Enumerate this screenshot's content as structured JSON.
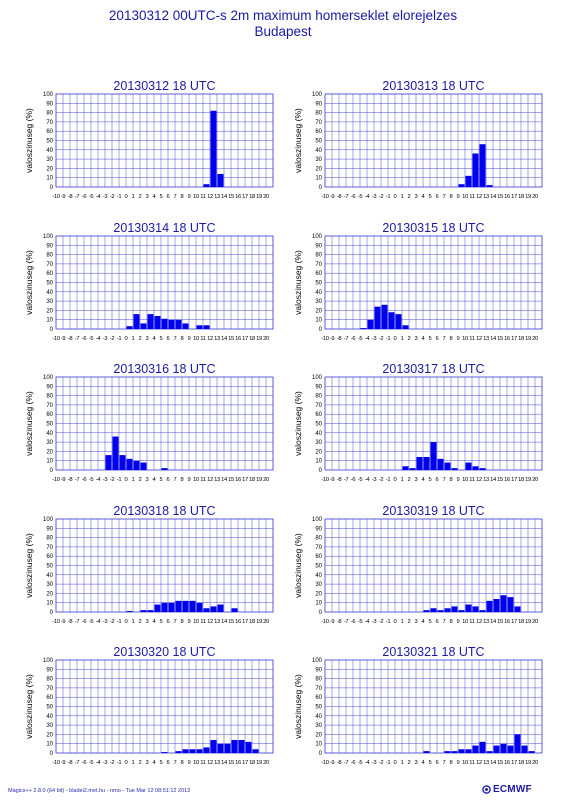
{
  "header": {
    "title_line1": "20130312 00UTC-s 2m maximum homerseklet elorejelzes",
    "title_line2": "Budapest"
  },
  "footer": {
    "software": "Magics++ 2.8.0 (64 bit) - bladei2.met.hu - nmo - Tue Mar 12 08:51:12 2013",
    "logo": "ECMWF"
  },
  "colors": {
    "bar": "#0000ee",
    "grid": "#4a4ad8",
    "text": "#1a1aa6"
  },
  "chart_data": [
    {
      "type": "bar",
      "title": "20130312 18 UTC",
      "ylabel": "valoszinuseg (%)",
      "xlabel": "",
      "ylim": [
        0,
        100
      ],
      "categories": [
        "-10",
        "-9",
        "-8",
        "-7",
        "-6",
        "-5",
        "-4",
        "-3",
        "-2",
        "-1",
        "0",
        "1",
        "2",
        "3",
        "4",
        "5",
        "6",
        "7",
        "8",
        "9",
        "10",
        "11",
        "12",
        "13",
        "14",
        "15",
        "16",
        "17",
        "18",
        "19",
        "20"
      ],
      "yticks": [
        "0",
        "10",
        "20",
        "30",
        "40",
        "50",
        "60",
        "70",
        "80",
        "90",
        "100"
      ],
      "values": [
        0,
        0,
        0,
        0,
        0,
        0,
        0,
        0,
        0,
        0,
        0,
        0,
        0,
        0,
        0,
        0,
        0,
        0,
        0,
        0,
        0,
        3,
        82,
        14,
        0,
        0,
        0,
        0,
        0,
        0,
        0
      ]
    },
    {
      "type": "bar",
      "title": "20130313 18 UTC",
      "ylabel": "valoszinuseg (%)",
      "xlabel": "",
      "ylim": [
        0,
        100
      ],
      "categories": [
        "-10",
        "-9",
        "-8",
        "-7",
        "-6",
        "-5",
        "-4",
        "-3",
        "-2",
        "-1",
        "0",
        "1",
        "2",
        "3",
        "4",
        "5",
        "6",
        "7",
        "8",
        "9",
        "10",
        "11",
        "12",
        "13",
        "14",
        "15",
        "16",
        "17",
        "18",
        "19",
        "20"
      ],
      "yticks": [
        "0",
        "10",
        "20",
        "30",
        "40",
        "50",
        "60",
        "70",
        "80",
        "90",
        "100"
      ],
      "values": [
        0,
        0,
        0,
        0,
        0,
        0,
        0,
        0,
        0,
        0,
        0,
        0,
        0,
        0,
        0,
        0,
        0,
        0,
        0,
        3,
        12,
        36,
        46,
        2,
        0,
        0,
        0,
        0,
        0,
        0,
        0
      ]
    },
    {
      "type": "bar",
      "title": "20130314 18 UTC",
      "ylabel": "valoszinuseg (%)",
      "xlabel": "",
      "ylim": [
        0,
        100
      ],
      "categories": [
        "-10",
        "-9",
        "-8",
        "-7",
        "-6",
        "-5",
        "-4",
        "-3",
        "-2",
        "-1",
        "0",
        "1",
        "2",
        "3",
        "4",
        "5",
        "6",
        "7",
        "8",
        "9",
        "10",
        "11",
        "12",
        "13",
        "14",
        "15",
        "16",
        "17",
        "18",
        "19",
        "20"
      ],
      "yticks": [
        "0",
        "10",
        "20",
        "30",
        "40",
        "50",
        "60",
        "70",
        "80",
        "90",
        "100"
      ],
      "values": [
        0,
        0,
        0,
        0,
        0,
        0,
        0,
        0,
        0,
        0,
        3,
        16,
        6,
        16,
        14,
        11,
        10,
        10,
        6,
        0,
        4,
        4,
        0,
        0,
        0,
        0,
        0,
        0,
        0,
        0,
        0
      ]
    },
    {
      "type": "bar",
      "title": "20130315 18 UTC",
      "ylabel": "valoszinuseg (%)",
      "xlabel": "",
      "ylim": [
        0,
        100
      ],
      "categories": [
        "-10",
        "-9",
        "-8",
        "-7",
        "-6",
        "-5",
        "-4",
        "-3",
        "-2",
        "-1",
        "0",
        "1",
        "2",
        "3",
        "4",
        "5",
        "6",
        "7",
        "8",
        "9",
        "10",
        "11",
        "12",
        "13",
        "14",
        "15",
        "16",
        "17",
        "18",
        "19",
        "20"
      ],
      "yticks": [
        "0",
        "10",
        "20",
        "30",
        "40",
        "50",
        "60",
        "70",
        "80",
        "90",
        "100"
      ],
      "values": [
        0,
        0,
        0,
        0,
        0,
        1,
        10,
        24,
        26,
        18,
        16,
        4,
        0,
        0,
        0,
        0,
        0,
        0,
        0,
        0,
        0,
        0,
        0,
        0,
        0,
        0,
        0,
        0,
        0,
        0,
        0
      ]
    },
    {
      "type": "bar",
      "title": "20130316 18 UTC",
      "ylabel": "valoszinuseg (%)",
      "xlabel": "",
      "ylim": [
        0,
        100
      ],
      "categories": [
        "-10",
        "-9",
        "-8",
        "-7",
        "-6",
        "-5",
        "-4",
        "-3",
        "-2",
        "-1",
        "0",
        "1",
        "2",
        "3",
        "4",
        "5",
        "6",
        "7",
        "8",
        "9",
        "10",
        "11",
        "12",
        "13",
        "14",
        "15",
        "16",
        "17",
        "18",
        "19",
        "20"
      ],
      "yticks": [
        "0",
        "10",
        "20",
        "30",
        "40",
        "50",
        "60",
        "70",
        "80",
        "90",
        "100"
      ],
      "values": [
        0,
        0,
        0,
        0,
        0,
        0,
        0,
        16,
        36,
        16,
        12,
        10,
        8,
        0,
        0,
        2,
        0,
        0,
        0,
        0,
        0,
        0,
        0,
        0,
        0,
        0,
        0,
        0,
        0,
        0,
        0
      ]
    },
    {
      "type": "bar",
      "title": "20130317 18 UTC",
      "ylabel": "valoszinuseg (%)",
      "xlabel": "",
      "ylim": [
        0,
        100
      ],
      "categories": [
        "-10",
        "-9",
        "-8",
        "-7",
        "-6",
        "-5",
        "-4",
        "-3",
        "-2",
        "-1",
        "0",
        "1",
        "2",
        "3",
        "4",
        "5",
        "6",
        "7",
        "8",
        "9",
        "10",
        "11",
        "12",
        "13",
        "14",
        "15",
        "16",
        "17",
        "18",
        "19",
        "20"
      ],
      "yticks": [
        "0",
        "10",
        "20",
        "30",
        "40",
        "50",
        "60",
        "70",
        "80",
        "90",
        "100"
      ],
      "values": [
        0,
        0,
        0,
        0,
        0,
        0,
        0,
        0,
        0,
        0,
        0,
        4,
        2,
        14,
        14,
        30,
        12,
        8,
        2,
        0,
        8,
        4,
        2,
        0,
        0,
        0,
        0,
        0,
        0,
        0,
        0
      ]
    },
    {
      "type": "bar",
      "title": "20130318 18 UTC",
      "ylabel": "valoszinuseg (%)",
      "xlabel": "",
      "ylim": [
        0,
        100
      ],
      "categories": [
        "-10",
        "-9",
        "-8",
        "-7",
        "-6",
        "-5",
        "-4",
        "-3",
        "-2",
        "-1",
        "0",
        "1",
        "2",
        "3",
        "4",
        "5",
        "6",
        "7",
        "8",
        "9",
        "10",
        "11",
        "12",
        "13",
        "14",
        "15",
        "16",
        "17",
        "18",
        "19",
        "20"
      ],
      "yticks": [
        "0",
        "10",
        "20",
        "30",
        "40",
        "50",
        "60",
        "70",
        "80",
        "90",
        "100"
      ],
      "values": [
        0,
        0,
        0,
        0,
        0,
        0,
        0,
        0,
        0,
        0,
        1,
        0,
        2,
        2,
        8,
        10,
        10,
        12,
        12,
        12,
        10,
        4,
        6,
        8,
        0,
        4,
        0,
        0,
        0,
        0,
        0
      ]
    },
    {
      "type": "bar",
      "title": "20130319 18 UTC",
      "ylabel": "valoszinuseg (%)",
      "xlabel": "",
      "ylim": [
        0,
        100
      ],
      "categories": [
        "-10",
        "-9",
        "-8",
        "-7",
        "-6",
        "-5",
        "-4",
        "-3",
        "-2",
        "-1",
        "0",
        "1",
        "2",
        "3",
        "4",
        "5",
        "6",
        "7",
        "8",
        "9",
        "10",
        "11",
        "12",
        "13",
        "14",
        "15",
        "16",
        "17",
        "18",
        "19",
        "20"
      ],
      "yticks": [
        "0",
        "10",
        "20",
        "30",
        "40",
        "50",
        "60",
        "70",
        "80",
        "90",
        "100"
      ],
      "values": [
        0,
        0,
        0,
        0,
        0,
        0,
        0,
        0,
        0,
        0,
        0,
        0,
        0,
        0,
        2,
        4,
        2,
        4,
        6,
        2,
        8,
        6,
        2,
        12,
        14,
        18,
        16,
        6,
        0,
        0,
        0
      ]
    },
    {
      "type": "bar",
      "title": "20130320 18 UTC",
      "ylabel": "valoszinuseg (%)",
      "xlabel": "",
      "ylim": [
        0,
        100
      ],
      "categories": [
        "-10",
        "-9",
        "-8",
        "-7",
        "-6",
        "-5",
        "-4",
        "-3",
        "-2",
        "-1",
        "0",
        "1",
        "2",
        "3",
        "4",
        "5",
        "6",
        "7",
        "8",
        "9",
        "10",
        "11",
        "12",
        "13",
        "14",
        "15",
        "16",
        "17",
        "18",
        "19",
        "20"
      ],
      "yticks": [
        "0",
        "10",
        "20",
        "30",
        "40",
        "50",
        "60",
        "70",
        "80",
        "90",
        "100"
      ],
      "values": [
        0,
        0,
        0,
        0,
        0,
        0,
        0,
        0,
        0,
        0,
        0,
        0,
        0,
        0,
        0,
        1,
        0,
        2,
        4,
        4,
        4,
        6,
        14,
        10,
        10,
        14,
        14,
        12,
        4,
        0,
        0
      ]
    },
    {
      "type": "bar",
      "title": "20130321 18 UTC",
      "ylabel": "valoszinuseg (%)",
      "xlabel": "",
      "ylim": [
        0,
        100
      ],
      "categories": [
        "-10",
        "-9",
        "-8",
        "-7",
        "-6",
        "-5",
        "-4",
        "-3",
        "-2",
        "-1",
        "0",
        "1",
        "2",
        "3",
        "4",
        "5",
        "6",
        "7",
        "8",
        "9",
        "10",
        "11",
        "12",
        "13",
        "14",
        "15",
        "16",
        "17",
        "18",
        "19",
        "20"
      ],
      "yticks": [
        "0",
        "10",
        "20",
        "30",
        "40",
        "50",
        "60",
        "70",
        "80",
        "90",
        "100"
      ],
      "values": [
        0,
        0,
        0,
        0,
        0,
        0,
        0,
        0,
        0,
        0,
        0,
        0,
        0,
        0,
        2,
        0,
        0,
        2,
        2,
        4,
        4,
        8,
        12,
        2,
        8,
        10,
        8,
        20,
        8,
        2,
        0
      ]
    }
  ]
}
